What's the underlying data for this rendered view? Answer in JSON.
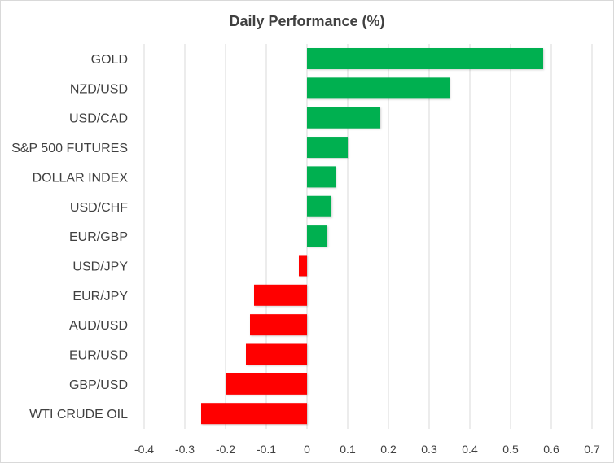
{
  "chart_data": {
    "type": "bar",
    "orientation": "horizontal",
    "title": "Daily Performance (%)",
    "categories": [
      "GOLD",
      "NZD/USD",
      "USD/CAD",
      "S&P 500 FUTURES",
      "DOLLAR INDEX",
      "USD/CHF",
      "EUR/GBP",
      "USD/JPY",
      "EUR/JPY",
      "AUD/USD",
      "EUR/USD",
      "GBP/USD",
      "WTI CRUDE OIL"
    ],
    "values": [
      0.58,
      0.35,
      0.18,
      0.1,
      0.07,
      0.06,
      0.05,
      -0.02,
      -0.13,
      -0.14,
      -0.15,
      -0.2,
      -0.26
    ],
    "xlim": [
      -0.4,
      0.7
    ],
    "x_ticks": [
      -0.4,
      -0.3,
      -0.2,
      -0.1,
      0,
      0.1,
      0.2,
      0.3,
      0.4,
      0.5,
      0.6,
      0.7
    ],
    "tick_labels": [
      "-0.4",
      "-0.3",
      "-0.2",
      "-0.1",
      "0",
      "0.1",
      "0.2",
      "0.3",
      "0.4",
      "0.5",
      "0.6",
      "0.7"
    ],
    "grid": true,
    "legend": "none",
    "colors": {
      "positive": "#00b050",
      "negative": "#ff0000",
      "grid": "#d9d9d9",
      "text": "#404040"
    }
  }
}
